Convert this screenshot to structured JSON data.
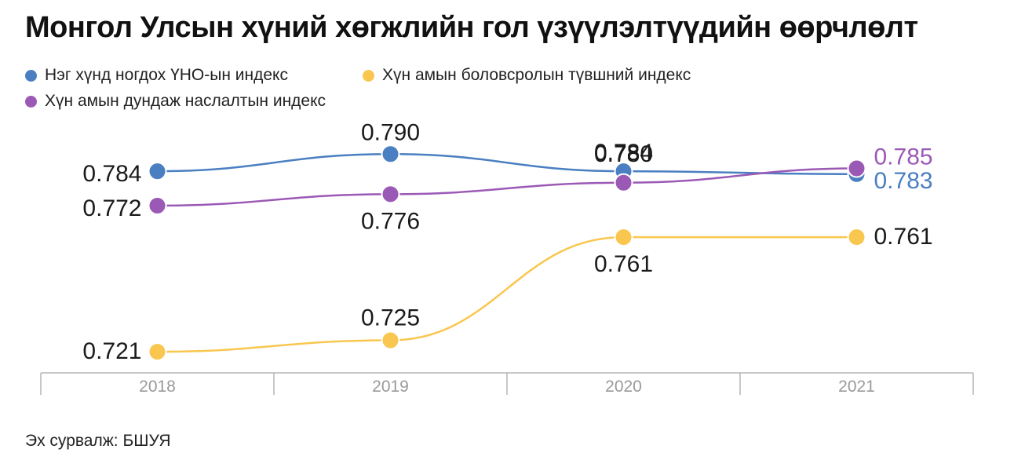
{
  "source_label": "Эх сурвалж: БШУЯ",
  "chart_data": {
    "type": "line",
    "title": "Монгол Улсын хүний хөгжлийн гол үзүүлэлтүүдийн өөрчлөлт",
    "xlabel": "",
    "ylabel": "",
    "categories": [
      "2018",
      "2019",
      "2020",
      "2021"
    ],
    "ylim": [
      0.715,
      0.795
    ],
    "grid": false,
    "legend_position": "top-left",
    "series": [
      {
        "name": "Нэг хүнд ногдох ҮНО-ын индекс",
        "color": "#4a7fc1",
        "values": [
          0.784,
          0.79,
          0.784,
          0.783
        ],
        "labels": [
          "0.784",
          "0.790",
          "0.784",
          "0.783"
        ]
      },
      {
        "name": "Хүн амын боловсролын түвшний индекс",
        "color": "#f9c74f",
        "values": [
          0.721,
          0.725,
          0.761,
          0.761
        ],
        "labels": [
          "0.721",
          "0.725",
          "0.761",
          "0.761"
        ]
      },
      {
        "name": "Хүн амын дундаж наслалтын индекс",
        "color": "#9b59b6",
        "values": [
          0.772,
          0.776,
          0.78,
          0.785
        ],
        "labels": [
          "0.772",
          "0.776",
          "0.780",
          "0.785"
        ]
      }
    ]
  }
}
